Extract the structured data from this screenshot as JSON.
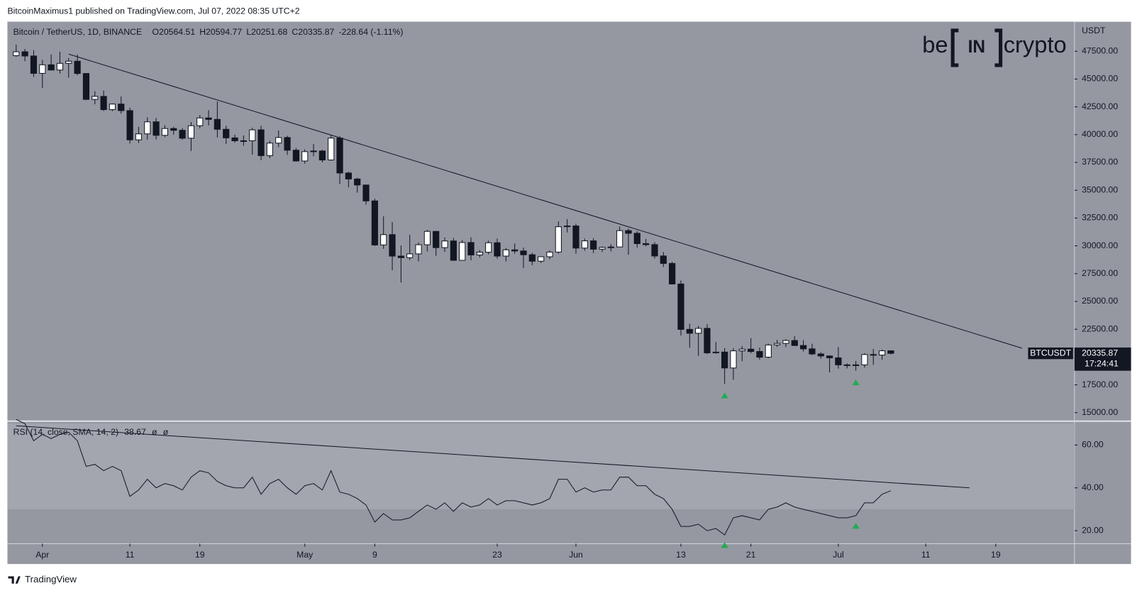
{
  "header": "BitcoinMaximus1 published on TradingView.com, Jul 07, 2022 08:35 UTC+2",
  "logo": {
    "left": "be",
    "middle": "IN",
    "right": "crypto"
  },
  "footer": "TradingView",
  "chart_data": [
    {
      "type": "candlestick",
      "title": "Bitcoin / TetherUS, 1D, BINANCE",
      "axis_unit": "USDT",
      "symbol": "BTCUSDT",
      "countdown": "17:24:41",
      "legend": {
        "open": "O",
        "high": "H",
        "low": "L",
        "close": "C",
        "change": "-228.64 (-1.11%)"
      },
      "x": [
        "2022-03-29",
        "2022-03-30",
        "2022-03-31",
        "2022-04-01",
        "2022-04-02",
        "2022-04-03",
        "2022-04-04",
        "2022-04-05",
        "2022-04-06",
        "2022-04-07",
        "2022-04-08",
        "2022-04-09",
        "2022-04-10",
        "2022-04-11",
        "2022-04-12",
        "2022-04-13",
        "2022-04-14",
        "2022-04-15",
        "2022-04-16",
        "2022-04-17",
        "2022-04-18",
        "2022-04-19",
        "2022-04-20",
        "2022-04-21",
        "2022-04-22",
        "2022-04-23",
        "2022-04-24",
        "2022-04-25",
        "2022-04-26",
        "2022-04-27",
        "2022-04-28",
        "2022-04-29",
        "2022-04-30",
        "2022-05-01",
        "2022-05-02",
        "2022-05-03",
        "2022-05-04",
        "2022-05-05",
        "2022-05-06",
        "2022-05-07",
        "2022-05-08",
        "2022-05-09",
        "2022-05-10",
        "2022-05-11",
        "2022-05-12",
        "2022-05-13",
        "2022-05-14",
        "2022-05-15",
        "2022-05-16",
        "2022-05-17",
        "2022-05-18",
        "2022-05-19",
        "2022-05-20",
        "2022-05-21",
        "2022-05-22",
        "2022-05-23",
        "2022-05-24",
        "2022-05-25",
        "2022-05-26",
        "2022-05-27",
        "2022-05-28",
        "2022-05-29",
        "2022-05-30",
        "2022-05-31",
        "2022-06-01",
        "2022-06-02",
        "2022-06-03",
        "2022-06-04",
        "2022-06-05",
        "2022-06-06",
        "2022-06-07",
        "2022-06-08",
        "2022-06-09",
        "2022-06-10",
        "2022-06-11",
        "2022-06-12",
        "2022-06-13",
        "2022-06-14",
        "2022-06-15",
        "2022-06-16",
        "2022-06-17",
        "2022-06-18",
        "2022-06-19",
        "2022-06-20",
        "2022-06-21",
        "2022-06-22",
        "2022-06-23",
        "2022-06-24",
        "2022-06-25",
        "2022-06-26",
        "2022-06-27",
        "2022-06-28",
        "2022-06-29",
        "2022-06-30",
        "2022-07-01",
        "2022-07-02",
        "2022-07-03",
        "2022-07-04",
        "2022-07-05",
        "2022-07-06",
        "2022-07-07"
      ],
      "open": [
        47100,
        47450,
        47070,
        45510,
        46280,
        45810,
        46410,
        46600,
        45500,
        43170,
        43440,
        42250,
        42750,
        42160,
        39530,
        40070,
        41150,
        39940,
        40550,
        40390,
        39680,
        40800,
        41500,
        41370,
        40480,
        39710,
        39450,
        39450,
        40430,
        38110,
        39240,
        39740,
        38600,
        37630,
        38470,
        38530,
        37720,
        39690,
        36550,
        36010,
        35470,
        34040,
        30080,
        31010,
        29080,
        28940,
        29280,
        30100,
        31300,
        29840,
        30440,
        28700,
        30300,
        29180,
        29430,
        30280,
        29080,
        29640,
        29540,
        29200,
        28620,
        29020,
        29440,
        31720,
        31790,
        29800,
        30450,
        29700,
        29860,
        29900,
        31370,
        31130,
        30200,
        30110,
        29090,
        28420,
        26570,
        22490,
        22140,
        22580,
        20380,
        20450,
        19020,
        20560,
        20710,
        20500,
        19990,
        21090,
        21230,
        21490,
        21040,
        20740,
        20280,
        20100,
        19930,
        19300,
        19240,
        19300,
        20230,
        20180,
        20564.51
      ],
      "high": [
        48100,
        47700,
        47600,
        46720,
        47200,
        47450,
        46890,
        47200,
        45500,
        43900,
        43970,
        42800,
        43430,
        42420,
        40700,
        41560,
        41500,
        40850,
        40700,
        40600,
        41130,
        41760,
        42200,
        42980,
        40800,
        39990,
        39930,
        40620,
        40800,
        39450,
        40370,
        39900,
        38800,
        38680,
        39170,
        38630,
        39980,
        39850,
        36660,
        36130,
        35500,
        34240,
        32660,
        32140,
        30030,
        30990,
        30300,
        31440,
        31300,
        30750,
        30700,
        30530,
        30770,
        29620,
        30470,
        30650,
        29820,
        30200,
        29850,
        29380,
        29000,
        29580,
        32200,
        32400,
        31980,
        30650,
        30680,
        29950,
        30150,
        31750,
        31550,
        31320,
        30620,
        30330,
        29450,
        28560,
        26890,
        23000,
        22800,
        22980,
        21350,
        20800,
        20800,
        21000,
        21700,
        20860,
        21200,
        21550,
        21600,
        21880,
        21520,
        21200,
        20430,
        20150,
        20900,
        19430,
        19650,
        20350,
        20730,
        20680,
        20594.77
      ],
      "low": [
        47000,
        46600,
        45200,
        44200,
        45800,
        45500,
        45120,
        45350,
        43100,
        42730,
        42120,
        42120,
        41890,
        39200,
        39250,
        39550,
        39560,
        39770,
        40000,
        39540,
        38540,
        40570,
        40820,
        39750,
        39170,
        39280,
        39000,
        38200,
        37700,
        37880,
        38880,
        38180,
        37580,
        37390,
        38060,
        37500,
        37670,
        35560,
        35260,
        34780,
        33710,
        30000,
        29730,
        27800,
        26700,
        28720,
        28600,
        29500,
        29100,
        29460,
        28660,
        28680,
        28700,
        28950,
        29230,
        28850,
        28600,
        29300,
        28000,
        28260,
        28460,
        28800,
        29300,
        31200,
        29300,
        29560,
        29350,
        29450,
        29500,
        29880,
        29200,
        29850,
        29950,
        28860,
        28100,
        26560,
        21940,
        20840,
        20100,
        20260,
        20300,
        17600,
        17960,
        19630,
        20350,
        19770,
        19900,
        20900,
        20900,
        21000,
        20500,
        20180,
        19860,
        18620,
        18960,
        18980,
        18780,
        19050,
        19300,
        19770,
        20251.68
      ],
      "close": [
        47450,
        47070,
        45510,
        46280,
        45810,
        46410,
        46600,
        45500,
        43170,
        43440,
        42250,
        42750,
        42160,
        39530,
        40070,
        41150,
        39940,
        40550,
        40390,
        39680,
        40800,
        41500,
        41370,
        40480,
        39710,
        39450,
        39450,
        40430,
        38110,
        39240,
        39740,
        38600,
        37630,
        38470,
        38530,
        37720,
        39690,
        36550,
        36010,
        35470,
        34040,
        30080,
        31010,
        29080,
        28940,
        29280,
        30100,
        31300,
        29840,
        30440,
        28700,
        30300,
        29180,
        29430,
        30280,
        29080,
        29640,
        29540,
        29200,
        28620,
        29020,
        29440,
        31720,
        31790,
        29800,
        30450,
        29700,
        29860,
        29900,
        31370,
        31130,
        30200,
        30110,
        29090,
        28420,
        26570,
        22490,
        22140,
        22580,
        20380,
        20450,
        19020,
        20560,
        20710,
        20500,
        19990,
        21090,
        21230,
        21490,
        21040,
        20740,
        20280,
        20100,
        19930,
        19300,
        19240,
        19300,
        20230,
        20180,
        20564.51,
        20335.87
      ],
      "up_color": "#ffffff",
      "down_color": "#131722",
      "xlim": [
        "2022-03-28",
        "2022-07-28"
      ],
      "xticks": [
        {
          "value": "2022-04-01",
          "label": "Apr"
        },
        {
          "value": "2022-04-11",
          "label": "11"
        },
        {
          "value": "2022-04-19",
          "label": "19"
        },
        {
          "value": "2022-05-01",
          "label": "May"
        },
        {
          "value": "2022-05-09",
          "label": "9"
        },
        {
          "value": "2022-05-23",
          "label": "23"
        },
        {
          "value": "2022-06-01",
          "label": "Jun"
        },
        {
          "value": "2022-06-13",
          "label": "13"
        },
        {
          "value": "2022-06-21",
          "label": "21"
        },
        {
          "value": "2022-07-01",
          "label": "Jul"
        },
        {
          "value": "2022-07-11",
          "label": "11"
        },
        {
          "value": "2022-07-19",
          "label": "19"
        }
      ],
      "ylim": [
        14300,
        50150
      ],
      "yticks": [
        {
          "value": 15000,
          "label": "15000.00"
        },
        {
          "value": 17500,
          "label": "17500.00"
        },
        {
          "value": 20000,
          "label": "20000.00"
        },
        {
          "value": 22500,
          "label": "22500.00"
        },
        {
          "value": 25000,
          "label": "25000.00"
        },
        {
          "value": 27500,
          "label": "27500.00"
        },
        {
          "value": 30000,
          "label": "30000.00"
        },
        {
          "value": 32500,
          "label": "32500.00"
        },
        {
          "value": 35000,
          "label": "35000.00"
        },
        {
          "value": 37500,
          "label": "37500.00"
        },
        {
          "value": 40000,
          "label": "40000.00"
        },
        {
          "value": 42500,
          "label": "42500.00"
        },
        {
          "value": 45000,
          "label": "45000.00"
        },
        {
          "value": 47500,
          "label": "47500.00"
        }
      ],
      "trendline": {
        "x": [
          "2022-04-04",
          "2022-07-22"
        ],
        "values": [
          47240,
          20800
        ]
      },
      "markers": [
        "2022-06-18",
        "2022-07-03"
      ],
      "marker_color": "#22ab54"
    },
    {
      "type": "line",
      "title": "RSI (14, close, SMA, 14, 2)",
      "legend_extra": [
        "ø",
        "ø"
      ],
      "color": "#131722",
      "x": [
        "2022-03-29",
        "2022-03-30",
        "2022-03-31",
        "2022-04-01",
        "2022-04-02",
        "2022-04-03",
        "2022-04-04",
        "2022-04-05",
        "2022-04-06",
        "2022-04-07",
        "2022-04-08",
        "2022-04-09",
        "2022-04-10",
        "2022-04-11",
        "2022-04-12",
        "2022-04-13",
        "2022-04-14",
        "2022-04-15",
        "2022-04-16",
        "2022-04-17",
        "2022-04-18",
        "2022-04-19",
        "2022-04-20",
        "2022-04-21",
        "2022-04-22",
        "2022-04-23",
        "2022-04-24",
        "2022-04-25",
        "2022-04-26",
        "2022-04-27",
        "2022-04-28",
        "2022-04-29",
        "2022-04-30",
        "2022-05-01",
        "2022-05-02",
        "2022-05-03",
        "2022-05-04",
        "2022-05-05",
        "2022-05-06",
        "2022-05-07",
        "2022-05-08",
        "2022-05-09",
        "2022-05-10",
        "2022-05-11",
        "2022-05-12",
        "2022-05-13",
        "2022-05-14",
        "2022-05-15",
        "2022-05-16",
        "2022-05-17",
        "2022-05-18",
        "2022-05-19",
        "2022-05-20",
        "2022-05-21",
        "2022-05-22",
        "2022-05-23",
        "2022-05-24",
        "2022-05-25",
        "2022-05-26",
        "2022-05-27",
        "2022-05-28",
        "2022-05-29",
        "2022-05-30",
        "2022-05-31",
        "2022-06-01",
        "2022-06-02",
        "2022-06-03",
        "2022-06-04",
        "2022-06-05",
        "2022-06-06",
        "2022-06-07",
        "2022-06-08",
        "2022-06-09",
        "2022-06-10",
        "2022-06-11",
        "2022-06-12",
        "2022-06-13",
        "2022-06-14",
        "2022-06-15",
        "2022-06-16",
        "2022-06-17",
        "2022-06-18",
        "2022-06-19",
        "2022-06-20",
        "2022-06-21",
        "2022-06-22",
        "2022-06-23",
        "2022-06-24",
        "2022-06-25",
        "2022-06-26",
        "2022-06-27",
        "2022-06-28",
        "2022-06-29",
        "2022-06-30",
        "2022-07-01",
        "2022-07-02",
        "2022-07-03",
        "2022-07-04",
        "2022-07-05",
        "2022-07-06",
        "2022-07-07"
      ],
      "values": [
        72,
        70,
        62,
        65,
        63,
        65,
        66,
        62,
        50,
        51,
        48,
        50,
        48,
        36,
        39,
        44,
        40,
        42,
        41,
        39,
        45,
        48,
        47,
        43,
        41,
        40,
        40,
        45,
        37,
        42,
        44,
        40,
        37,
        41,
        42,
        39,
        48,
        38,
        37,
        35,
        32,
        24,
        28,
        25,
        25,
        26,
        29,
        32,
        30,
        33,
        29,
        33,
        31,
        32,
        35,
        32,
        34,
        34,
        33,
        32,
        33,
        35,
        44,
        44,
        38,
        40,
        38,
        39,
        39,
        45,
        45,
        41,
        41,
        37,
        35,
        30,
        22,
        22,
        23,
        20,
        21,
        18,
        26,
        27,
        26,
        25,
        30,
        31,
        33,
        31,
        30,
        29,
        28,
        27,
        26,
        26,
        27,
        33,
        33,
        37,
        38.67
      ],
      "xlim": [
        "2022-03-28",
        "2022-07-28"
      ],
      "ylim": [
        13.9,
        70.8
      ],
      "yticks": [
        {
          "value": 20,
          "label": "20.00"
        },
        {
          "value": 40,
          "label": "40.00"
        },
        {
          "value": 60,
          "label": "60.00"
        }
      ],
      "band": [
        30,
        70
      ],
      "trendline": {
        "x": [
          "2022-03-29",
          "2022-07-16"
        ],
        "values": [
          69,
          40
        ]
      },
      "markers": [
        "2022-06-18",
        "2022-07-03"
      ],
      "marker_color": "#22ab54"
    }
  ]
}
